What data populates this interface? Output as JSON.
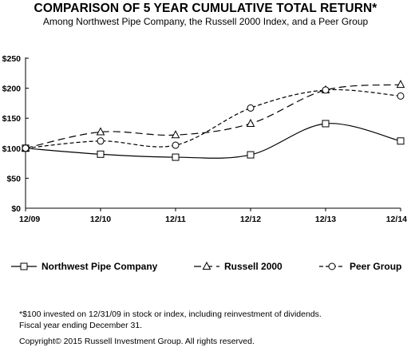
{
  "chart_data": {
    "type": "line",
    "title": "COMPARISON OF 5 YEAR CUMULATIVE TOTAL RETURN*",
    "subtitle": "Among Northwest Pipe Company, the Russell 2000 Index, and a Peer Group",
    "categories": [
      "12/09",
      "12/10",
      "12/11",
      "12/12",
      "12/13",
      "12/14"
    ],
    "y_ticks": [
      "$0",
      "$50",
      "$100",
      "$150",
      "$200",
      "$250"
    ],
    "ylim": [
      0,
      250
    ],
    "y_tick_step": 50,
    "grid": false,
    "legend_position": "bottom",
    "series": [
      {
        "name": "Northwest Pipe Company",
        "values": [
          100,
          90,
          85,
          89,
          141,
          112
        ],
        "marker": "square",
        "dash": "solid"
      },
      {
        "name": "Russell 2000",
        "values": [
          100,
          127,
          122,
          141,
          197,
          206
        ],
        "marker": "triangle",
        "dash": "long-dash"
      },
      {
        "name": "Peer Group",
        "values": [
          100,
          112,
          105,
          167,
          197,
          187
        ],
        "marker": "circle",
        "dash": "short-dash"
      }
    ]
  },
  "footnotes": {
    "line1": "*$100 invested on 12/31/09 in stock or index, including reinvestment of dividends.",
    "line2": "Fiscal year ending December 31.",
    "copyright": "Copyright© 2015 Russell Investment Group. All rights reserved."
  }
}
